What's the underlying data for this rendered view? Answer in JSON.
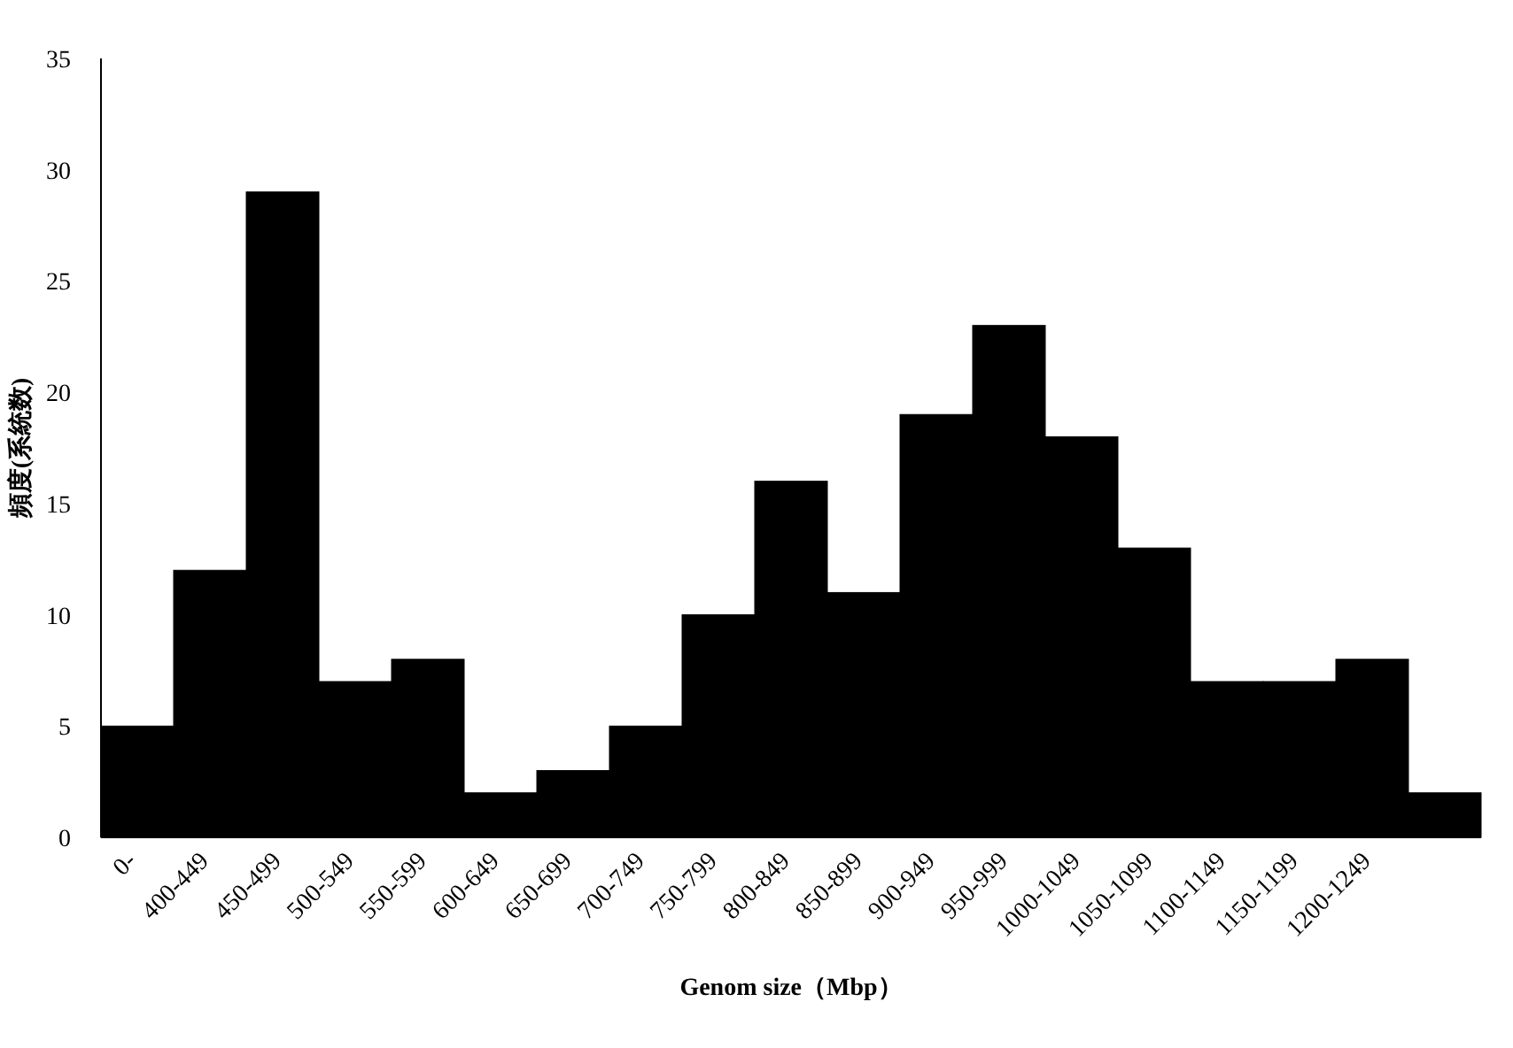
{
  "chart_data": {
    "type": "bar",
    "xlabel": "Genom size（Mbp）",
    "ylabel": "頻度(系統数)",
    "categories": [
      "0-",
      "400-449",
      "450-499",
      "500-549",
      "550-599",
      "600-649",
      "650-699",
      "700-749",
      "750-799",
      "800-849",
      "850-899",
      "900-949",
      "950-999",
      "1000-1049",
      "1050-1099",
      "1100-1149",
      "1150-1199",
      "1200-1249",
      null
    ],
    "values": [
      5,
      12,
      29,
      7,
      8,
      2,
      3,
      5,
      10,
      16,
      11,
      19,
      23,
      18,
      13,
      7,
      7,
      8,
      2
    ],
    "color": "#000000",
    "ylim": [
      0,
      35
    ],
    "yticks": [
      0,
      5,
      10,
      15,
      20,
      25,
      30,
      35
    ]
  }
}
